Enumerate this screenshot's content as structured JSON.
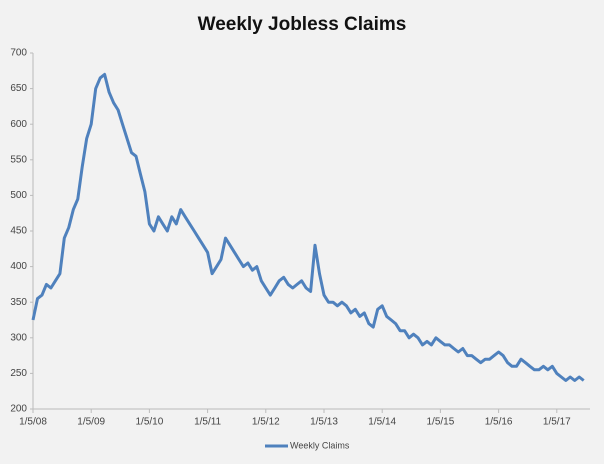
{
  "chart_data": {
    "type": "line",
    "title": "Weekly Jobless Claims",
    "categories": [
      "1/5/08",
      null,
      null,
      null,
      null,
      null,
      null,
      null,
      null,
      null,
      null,
      null,
      null,
      "1/5/09",
      null,
      null,
      null,
      null,
      null,
      null,
      null,
      null,
      null,
      null,
      null,
      null,
      "1/5/10",
      null,
      null,
      null,
      null,
      null,
      null,
      null,
      null,
      null,
      null,
      null,
      null,
      "1/5/11",
      null,
      null,
      null,
      null,
      null,
      null,
      null,
      null,
      null,
      null,
      null,
      null,
      "1/5/12",
      null,
      null,
      null,
      null,
      null,
      null,
      null,
      null,
      null,
      null,
      null,
      null,
      "1/5/13",
      null,
      null,
      null,
      null,
      null,
      null,
      null,
      null,
      null,
      null,
      null,
      null,
      "1/5/14",
      null,
      null,
      null,
      null,
      null,
      null,
      null,
      null,
      null,
      null,
      null,
      null,
      "1/5/15",
      null,
      null,
      null,
      null,
      null,
      null,
      null,
      null,
      null,
      null,
      null,
      null,
      "1/5/16",
      null,
      null,
      null,
      null,
      null,
      null,
      null,
      null,
      null,
      null,
      null,
      null,
      "1/5/17",
      null,
      null,
      null,
      null,
      null,
      null
    ],
    "series": [
      {
        "name": "Weekly Claims",
        "color": "#4f81bd",
        "values": [
          325,
          355,
          360,
          375,
          370,
          380,
          390,
          440,
          455,
          480,
          495,
          540,
          580,
          600,
          650,
          665,
          670,
          645,
          630,
          620,
          600,
          580,
          560,
          555,
          530,
          505,
          460,
          450,
          470,
          460,
          450,
          470,
          460,
          480,
          470,
          460,
          450,
          440,
          430,
          420,
          390,
          400,
          410,
          440,
          430,
          420,
          410,
          400,
          405,
          395,
          400,
          380,
          370,
          360,
          370,
          380,
          385,
          375,
          370,
          375,
          380,
          370,
          365,
          430,
          390,
          360,
          350,
          350,
          345,
          350,
          345,
          335,
          340,
          330,
          335,
          320,
          315,
          340,
          345,
          330,
          325,
          320,
          310,
          310,
          300,
          305,
          300,
          290,
          295,
          290,
          300,
          295,
          290,
          290,
          285,
          280,
          285,
          275,
          275,
          270,
          265,
          270,
          270,
          275,
          280,
          275,
          265,
          260,
          260,
          270,
          265,
          260,
          255,
          255,
          260,
          255,
          260,
          250,
          245,
          240,
          245,
          240,
          245,
          240
        ]
      }
    ],
    "ylim": [
      200,
      700
    ],
    "yticks": [
      200,
      250,
      300,
      350,
      400,
      450,
      500,
      550,
      600,
      650,
      700
    ],
    "grid": false,
    "legend": "bottom"
  }
}
